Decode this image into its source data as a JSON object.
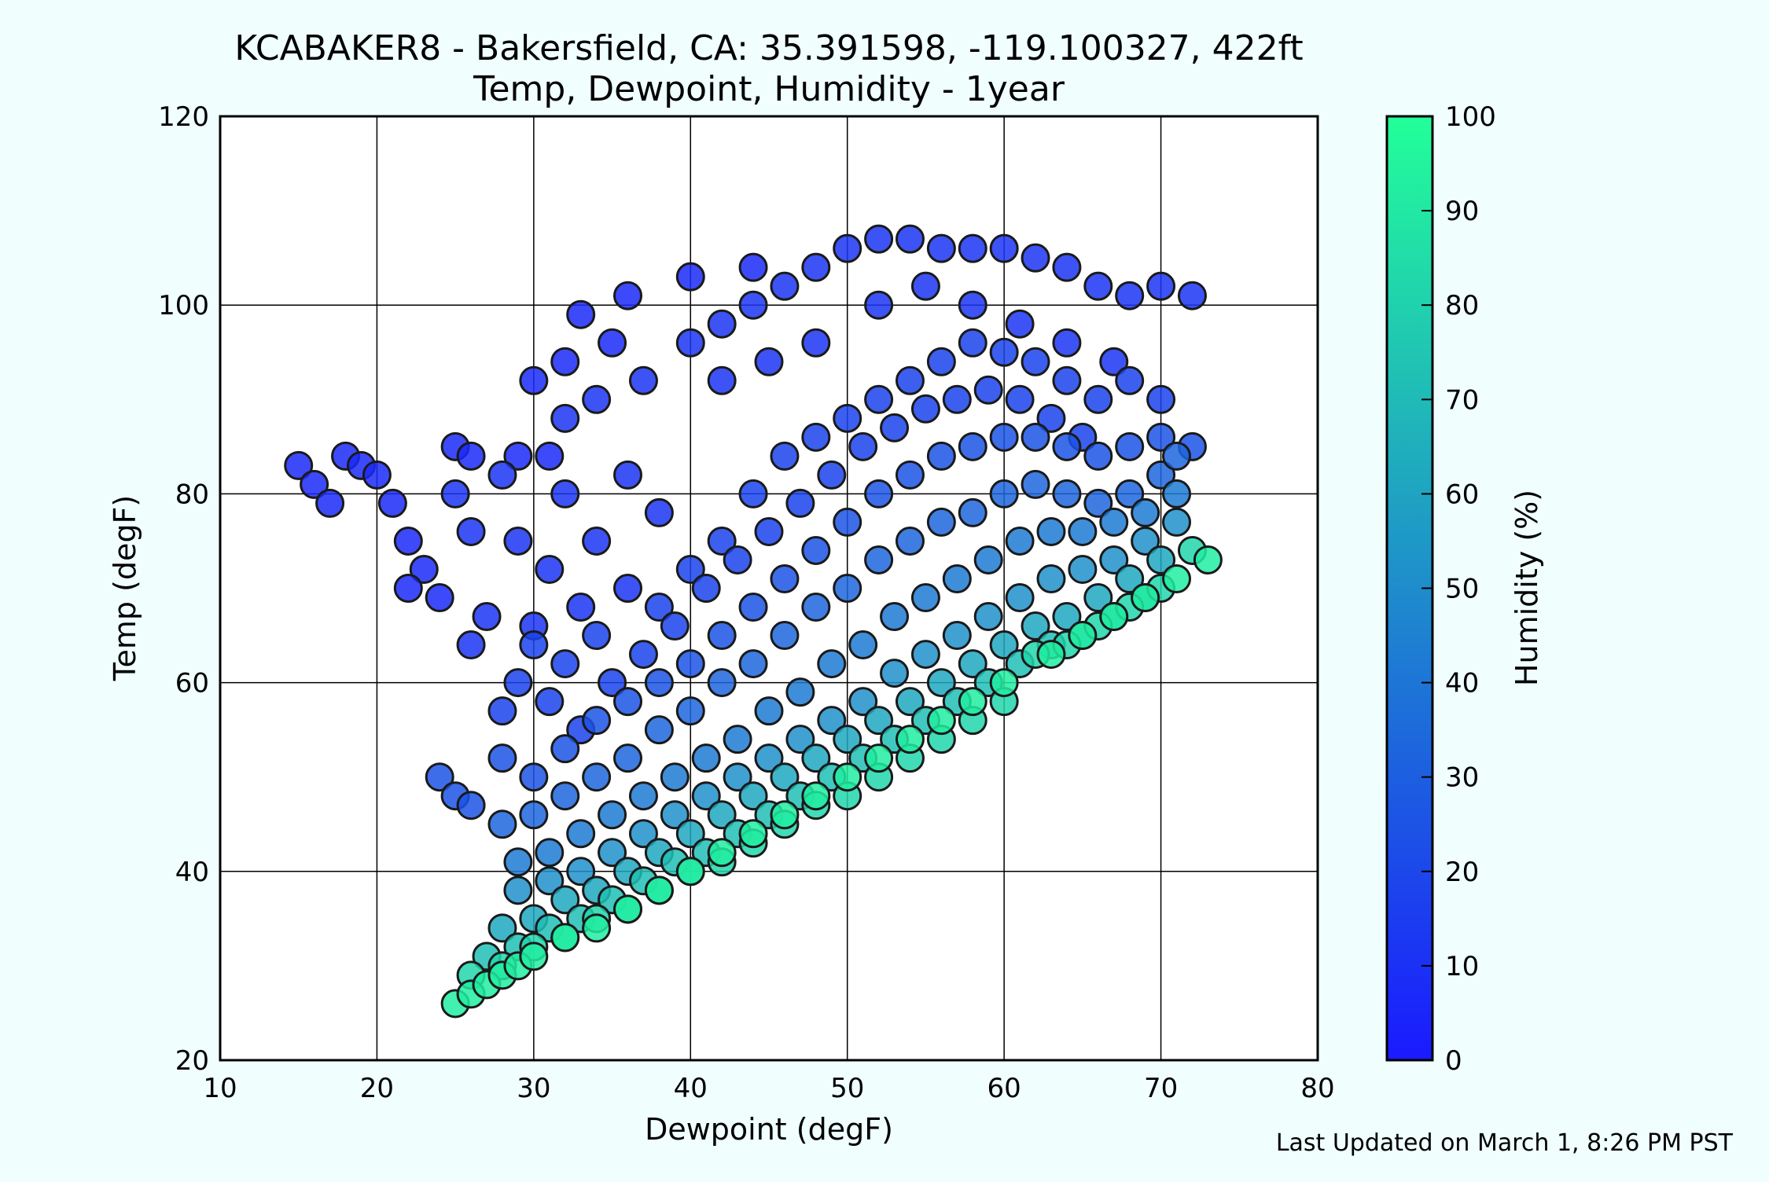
{
  "chart_data": {
    "type": "scatter",
    "title": "KCABAKER8 - Bakersfield, CA: 35.391598, -119.100327, 422ft",
    "subtitle": "Temp, Dewpoint, Humidity - 1year",
    "xlabel": "Dewpoint (degF)",
    "ylabel": "Temp (degF)",
    "xlim": [
      10,
      80
    ],
    "ylim": [
      20,
      120
    ],
    "xticks": [
      10,
      20,
      30,
      40,
      50,
      60,
      70,
      80
    ],
    "yticks": [
      20,
      40,
      60,
      80,
      100,
      120
    ],
    "grid": true,
    "colorbar": {
      "label": "Humidity (%)",
      "range": [
        0,
        100
      ],
      "ticks": [
        0,
        10,
        20,
        30,
        40,
        50,
        60,
        70,
        80,
        90,
        100
      ],
      "color_low": "#1a1aff",
      "color_high": "#22ff99"
    },
    "footer": "Last Updated on March 1, 8:26 PM PST",
    "colors": {
      "background": "#f0fffe",
      "plot_bg": "#ffffff",
      "marker_edge": "#1a1a1a"
    },
    "points_by_humidity": [
      {
        "humidity": 7,
        "points": [
          [
            15,
            83
          ],
          [
            16,
            81
          ],
          [
            17,
            79
          ],
          [
            18,
            84
          ],
          [
            19,
            83
          ],
          [
            20,
            82
          ],
          [
            21,
            79
          ],
          [
            22,
            75
          ],
          [
            23,
            72
          ],
          [
            24,
            69
          ],
          [
            22,
            70
          ],
          [
            25,
            85
          ],
          [
            26,
            84
          ],
          [
            29,
            84
          ],
          [
            31,
            84
          ],
          [
            33,
            99
          ],
          [
            36,
            101
          ],
          [
            40,
            103
          ],
          [
            44,
            104
          ],
          [
            30,
            92
          ],
          [
            32,
            94
          ],
          [
            35,
            96
          ]
        ]
      },
      {
        "humidity": 12,
        "points": [
          [
            25,
            80
          ],
          [
            26,
            76
          ],
          [
            27,
            67
          ],
          [
            26,
            64
          ],
          [
            28,
            82
          ],
          [
            32,
            80
          ],
          [
            36,
            82
          ],
          [
            38,
            78
          ],
          [
            32,
            88
          ],
          [
            34,
            90
          ],
          [
            37,
            92
          ],
          [
            40,
            96
          ],
          [
            42,
            98
          ],
          [
            44,
            100
          ],
          [
            46,
            102
          ],
          [
            48,
            104
          ],
          [
            50,
            106
          ],
          [
            52,
            107
          ],
          [
            54,
            107
          ],
          [
            56,
            106
          ],
          [
            58,
            106
          ],
          [
            60,
            106
          ],
          [
            62,
            105
          ],
          [
            64,
            104
          ],
          [
            66,
            102
          ],
          [
            68,
            101
          ],
          [
            70,
            102
          ],
          [
            72,
            101
          ],
          [
            42,
            92
          ],
          [
            45,
            94
          ],
          [
            48,
            96
          ],
          [
            52,
            100
          ],
          [
            55,
            102
          ],
          [
            58,
            100
          ],
          [
            61,
            98
          ],
          [
            64,
            96
          ],
          [
            67,
            94
          ],
          [
            29,
            75
          ],
          [
            31,
            72
          ],
          [
            34,
            75
          ],
          [
            33,
            68
          ],
          [
            36,
            70
          ],
          [
            30,
            66
          ]
        ]
      },
      {
        "humidity": 18,
        "points": [
          [
            30,
            64
          ],
          [
            32,
            62
          ],
          [
            34,
            65
          ],
          [
            38,
            68
          ],
          [
            40,
            72
          ],
          [
            42,
            75
          ],
          [
            44,
            80
          ],
          [
            46,
            84
          ],
          [
            48,
            86
          ],
          [
            50,
            88
          ],
          [
            52,
            90
          ],
          [
            54,
            92
          ],
          [
            56,
            94
          ],
          [
            58,
            96
          ],
          [
            60,
            95
          ],
          [
            62,
            94
          ],
          [
            64,
            92
          ],
          [
            66,
            90
          ],
          [
            68,
            92
          ],
          [
            70,
            90
          ],
          [
            28,
            57
          ],
          [
            29,
            60
          ],
          [
            31,
            58
          ],
          [
            33,
            55
          ],
          [
            35,
            60
          ],
          [
            37,
            63
          ],
          [
            39,
            66
          ],
          [
            41,
            70
          ],
          [
            43,
            73
          ],
          [
            45,
            76
          ],
          [
            47,
            79
          ],
          [
            49,
            82
          ],
          [
            51,
            85
          ],
          [
            53,
            87
          ],
          [
            55,
            89
          ],
          [
            57,
            90
          ],
          [
            59,
            91
          ],
          [
            61,
            90
          ],
          [
            63,
            88
          ],
          [
            65,
            86
          ]
        ]
      },
      {
        "humidity": 25,
        "points": [
          [
            24,
            50
          ],
          [
            25,
            48
          ],
          [
            26,
            47
          ],
          [
            28,
            52
          ],
          [
            30,
            50
          ],
          [
            32,
            53
          ],
          [
            34,
            56
          ],
          [
            36,
            58
          ],
          [
            38,
            60
          ],
          [
            40,
            62
          ],
          [
            42,
            65
          ],
          [
            44,
            68
          ],
          [
            46,
            71
          ],
          [
            48,
            74
          ],
          [
            50,
            77
          ],
          [
            52,
            80
          ],
          [
            54,
            82
          ],
          [
            56,
            84
          ],
          [
            58,
            85
          ],
          [
            60,
            86
          ],
          [
            62,
            86
          ],
          [
            64,
            85
          ],
          [
            66,
            84
          ],
          [
            68,
            85
          ],
          [
            70,
            86
          ],
          [
            72,
            85
          ]
        ]
      },
      {
        "humidity": 33,
        "points": [
          [
            28,
            45
          ],
          [
            30,
            46
          ],
          [
            32,
            48
          ],
          [
            34,
            50
          ],
          [
            36,
            52
          ],
          [
            38,
            55
          ],
          [
            40,
            57
          ],
          [
            42,
            60
          ],
          [
            44,
            62
          ],
          [
            46,
            65
          ],
          [
            48,
            68
          ],
          [
            50,
            70
          ],
          [
            52,
            73
          ],
          [
            54,
            75
          ],
          [
            56,
            77
          ],
          [
            58,
            78
          ],
          [
            60,
            80
          ],
          [
            62,
            81
          ],
          [
            64,
            80
          ],
          [
            66,
            79
          ],
          [
            68,
            80
          ],
          [
            70,
            82
          ],
          [
            71,
            84
          ]
        ]
      },
      {
        "humidity": 42,
        "points": [
          [
            29,
            41
          ],
          [
            31,
            42
          ],
          [
            33,
            44
          ],
          [
            35,
            46
          ],
          [
            37,
            48
          ],
          [
            39,
            50
          ],
          [
            41,
            52
          ],
          [
            43,
            54
          ],
          [
            45,
            57
          ],
          [
            47,
            59
          ],
          [
            49,
            62
          ],
          [
            51,
            64
          ],
          [
            53,
            67
          ],
          [
            55,
            69
          ],
          [
            57,
            71
          ],
          [
            59,
            73
          ],
          [
            61,
            75
          ],
          [
            63,
            76
          ],
          [
            65,
            76
          ],
          [
            67,
            77
          ],
          [
            69,
            78
          ],
          [
            71,
            80
          ]
        ]
      },
      {
        "humidity": 52,
        "points": [
          [
            29,
            38
          ],
          [
            31,
            39
          ],
          [
            33,
            40
          ],
          [
            35,
            42
          ],
          [
            37,
            44
          ],
          [
            39,
            46
          ],
          [
            41,
            48
          ],
          [
            43,
            50
          ],
          [
            45,
            52
          ],
          [
            47,
            54
          ],
          [
            49,
            56
          ],
          [
            51,
            58
          ],
          [
            53,
            61
          ],
          [
            55,
            63
          ],
          [
            57,
            65
          ],
          [
            59,
            67
          ],
          [
            61,
            69
          ],
          [
            63,
            71
          ],
          [
            65,
            72
          ],
          [
            67,
            73
          ],
          [
            69,
            75
          ],
          [
            71,
            77
          ]
        ]
      },
      {
        "humidity": 62,
        "points": [
          [
            28,
            34
          ],
          [
            30,
            35
          ],
          [
            32,
            37
          ],
          [
            34,
            38
          ],
          [
            36,
            40
          ],
          [
            38,
            42
          ],
          [
            40,
            44
          ],
          [
            42,
            46
          ],
          [
            44,
            48
          ],
          [
            46,
            50
          ],
          [
            48,
            52
          ],
          [
            50,
            54
          ],
          [
            52,
            56
          ],
          [
            54,
            58
          ],
          [
            56,
            60
          ],
          [
            58,
            62
          ],
          [
            60,
            64
          ],
          [
            62,
            66
          ],
          [
            64,
            67
          ],
          [
            66,
            69
          ],
          [
            68,
            71
          ],
          [
            70,
            73
          ]
        ]
      },
      {
        "humidity": 72,
        "points": [
          [
            27,
            31
          ],
          [
            29,
            32
          ],
          [
            31,
            34
          ],
          [
            33,
            35
          ],
          [
            35,
            37
          ],
          [
            37,
            39
          ],
          [
            39,
            41
          ],
          [
            41,
            42
          ],
          [
            43,
            44
          ],
          [
            45,
            46
          ],
          [
            47,
            48
          ],
          [
            49,
            50
          ],
          [
            51,
            52
          ],
          [
            53,
            54
          ],
          [
            55,
            56
          ],
          [
            57,
            58
          ],
          [
            59,
            60
          ],
          [
            61,
            62
          ],
          [
            63,
            64
          ],
          [
            65,
            65
          ],
          [
            67,
            67
          ],
          [
            69,
            69
          ]
        ]
      },
      {
        "humidity": 82,
        "points": [
          [
            26,
            29
          ],
          [
            28,
            30
          ],
          [
            30,
            32
          ],
          [
            32,
            33
          ],
          [
            34,
            35
          ],
          [
            36,
            36
          ],
          [
            38,
            38
          ],
          [
            40,
            40
          ],
          [
            42,
            41
          ],
          [
            44,
            43
          ],
          [
            46,
            45
          ],
          [
            48,
            47
          ],
          [
            50,
            48
          ],
          [
            52,
            50
          ],
          [
            54,
            52
          ],
          [
            56,
            54
          ],
          [
            58,
            56
          ],
          [
            60,
            58
          ],
          [
            62,
            63
          ],
          [
            64,
            64
          ],
          [
            66,
            66
          ],
          [
            68,
            68
          ],
          [
            70,
            70
          ],
          [
            72,
            74
          ]
        ]
      },
      {
        "humidity": 92,
        "points": [
          [
            25,
            26
          ],
          [
            26,
            27
          ],
          [
            27,
            28
          ],
          [
            28,
            29
          ],
          [
            29,
            30
          ],
          [
            30,
            31
          ],
          [
            32,
            33
          ],
          [
            34,
            34
          ],
          [
            36,
            36
          ],
          [
            38,
            38
          ],
          [
            40,
            40
          ],
          [
            42,
            42
          ],
          [
            44,
            44
          ],
          [
            46,
            46
          ],
          [
            48,
            48
          ],
          [
            50,
            50
          ],
          [
            52,
            52
          ],
          [
            54,
            54
          ],
          [
            56,
            56
          ],
          [
            58,
            58
          ],
          [
            60,
            60
          ],
          [
            63,
            63
          ],
          [
            65,
            65
          ],
          [
            67,
            67
          ],
          [
            69,
            69
          ],
          [
            71,
            71
          ],
          [
            73,
            73
          ]
        ]
      }
    ]
  }
}
